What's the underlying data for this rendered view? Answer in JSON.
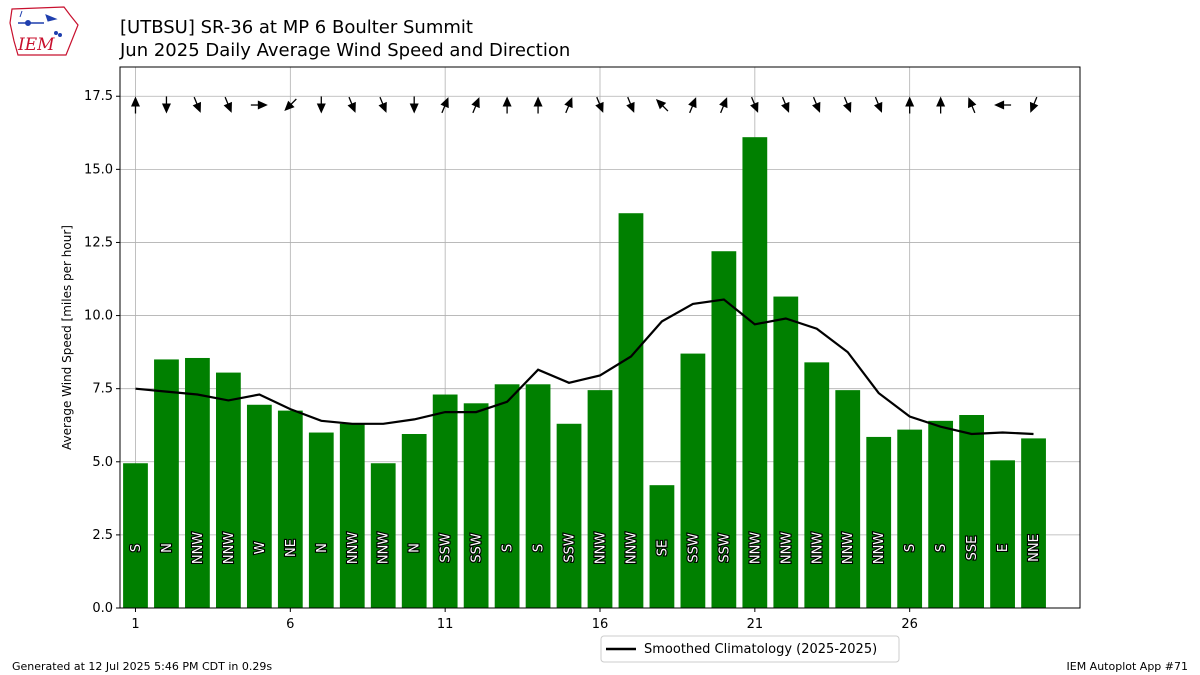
{
  "header": {
    "title_line1": "[UTBSU] SR-36 at MP 6 Boulter Summit",
    "title_line2": "Jun 2025 Daily Average Wind Speed and Direction"
  },
  "logo": {
    "text": "IEM",
    "color": "#c8102e",
    "icon": "iowa-state-outline"
  },
  "footer": {
    "generated": "Generated at 12 Jul 2025 5:46 PM CDT in 0.29s",
    "app": "IEM Autoplot App #71"
  },
  "colors": {
    "bar": "#008000",
    "climo": "#000000",
    "grid": "#b0b0b0"
  },
  "chart_data": {
    "type": "bar",
    "ylabel": "Average Wind Speed [miles per hour]",
    "ylim": [
      0,
      18.5
    ],
    "xlim": [
      0.5,
      31.5
    ],
    "yticks": [
      0.0,
      2.5,
      5.0,
      7.5,
      10.0,
      12.5,
      15.0,
      17.5
    ],
    "xticks": [
      1,
      6,
      11,
      16,
      21,
      26
    ],
    "grid": true,
    "legend_position": "below-center",
    "days": [
      1,
      2,
      3,
      4,
      5,
      6,
      7,
      8,
      9,
      10,
      11,
      12,
      13,
      14,
      15,
      16,
      17,
      18,
      19,
      20,
      21,
      22,
      23,
      24,
      25,
      26,
      27,
      28,
      29,
      30
    ],
    "series": [
      {
        "type": "bar",
        "values": [
          4.95,
          8.5,
          8.55,
          8.05,
          6.95,
          6.75,
          6.0,
          6.3,
          4.95,
          5.95,
          7.3,
          7.0,
          7.65,
          7.65,
          6.3,
          7.45,
          13.5,
          4.2,
          8.7,
          12.2,
          16.1,
          10.65,
          8.4,
          7.45,
          5.85,
          6.1,
          6.4,
          6.6,
          5.05,
          5.8
        ]
      },
      {
        "type": "line",
        "name": "Smoothed Climatology (2025-2025)",
        "values": [
          7.5,
          7.4,
          7.3,
          7.1,
          7.3,
          6.8,
          6.4,
          6.3,
          6.3,
          6.45,
          6.7,
          6.7,
          7.05,
          8.15,
          7.7,
          7.95,
          8.6,
          9.8,
          10.4,
          10.55,
          9.7,
          9.9,
          9.55,
          8.75,
          7.35,
          6.55,
          6.2,
          5.95,
          6.0,
          5.95
        ]
      }
    ],
    "direction_labels": [
      "S",
      "N",
      "NNW",
      "NNW",
      "W",
      "NE",
      "N",
      "NNW",
      "NNW",
      "N",
      "SSW",
      "SSW",
      "S",
      "S",
      "SSW",
      "NNW",
      "NNW",
      "SE",
      "SSW",
      "SSW",
      "NNW",
      "NNW",
      "NNW",
      "NNW",
      "NNW",
      "S",
      "S",
      "SSE",
      "E",
      "NNE"
    ]
  }
}
